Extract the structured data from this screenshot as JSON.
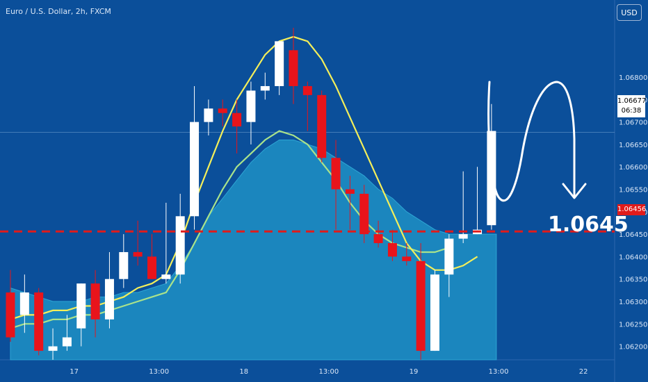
{
  "header": {
    "title": "Euro / U.S. Dollar, 2h, FXCM"
  },
  "toolbar": {
    "currency_label": "USD"
  },
  "price_tags": {
    "current_price": "1.06677",
    "countdown": "06:38",
    "line_price": "1.06456"
  },
  "annotation": {
    "target_label": "1.0645"
  },
  "colors": {
    "background": "#0b4f9a",
    "bull": "#ffffff",
    "bear": "#e8141b",
    "ma_fast": "#f4ef5a",
    "ma_slow": "#a9e38b",
    "area_fill": "#1f8fc4",
    "level_line": "#e01b1b"
  },
  "chart_data": {
    "type": "candlestick",
    "ylim": [
      1.0617,
      1.0691
    ],
    "y_ticks": [
      1.062,
      1.0625,
      1.063,
      1.0635,
      1.064,
      1.0645,
      1.065,
      1.0655,
      1.066,
      1.0665,
      1.067,
      1.0675,
      1.068
    ],
    "y_tick_labels": [
      "1.06200",
      "1.06250",
      "1.06300",
      "1.06350",
      "1.06400",
      "1.06450",
      "1.06500",
      "1.06550",
      "1.06600",
      "1.06650",
      "1.06700",
      "1.06750",
      "1.06800"
    ],
    "x_tick_labels": [
      {
        "label": "17",
        "bar": 4.5
      },
      {
        "label": "13:00",
        "bar": 10.5
      },
      {
        "label": "18",
        "bar": 16.5
      },
      {
        "label": "13:00",
        "bar": 22.5
      },
      {
        "label": "19",
        "bar": 28.5
      },
      {
        "label": "13:00",
        "bar": 34.5
      },
      {
        "label": "22",
        "bar": 40.5
      }
    ],
    "candles": [
      {
        "o": 1.0632,
        "h": 1.0637,
        "l": 1.0621,
        "c": 1.0622
      },
      {
        "o": 1.0627,
        "h": 1.0636,
        "l": 1.0623,
        "c": 1.0632
      },
      {
        "o": 1.0632,
        "h": 1.0633,
        "l": 1.0618,
        "c": 1.0619
      },
      {
        "o": 1.0619,
        "h": 1.0624,
        "l": 1.0617,
        "c": 1.062
      },
      {
        "o": 1.062,
        "h": 1.0627,
        "l": 1.0619,
        "c": 1.0622
      },
      {
        "o": 1.0624,
        "h": 1.0634,
        "l": 1.062,
        "c": 1.0634
      },
      {
        "o": 1.0634,
        "h": 1.0637,
        "l": 1.0622,
        "c": 1.0626
      },
      {
        "o": 1.0626,
        "h": 1.0641,
        "l": 1.0624,
        "c": 1.0635
      },
      {
        "o": 1.0635,
        "h": 1.0645,
        "l": 1.0633,
        "c": 1.0641
      },
      {
        "o": 1.0641,
        "h": 1.0648,
        "l": 1.0638,
        "c": 1.064
      },
      {
        "o": 1.064,
        "h": 1.0645,
        "l": 1.0635,
        "c": 1.0635
      },
      {
        "o": 1.0635,
        "h": 1.0652,
        "l": 1.0634,
        "c": 1.0636
      },
      {
        "o": 1.0636,
        "h": 1.0654,
        "l": 1.0634,
        "c": 1.0649
      },
      {
        "o": 1.0649,
        "h": 1.0678,
        "l": 1.0646,
        "c": 1.067
      },
      {
        "o": 1.067,
        "h": 1.0675,
        "l": 1.0667,
        "c": 1.0673
      },
      {
        "o": 1.0673,
        "h": 1.0675,
        "l": 1.0669,
        "c": 1.0672
      },
      {
        "o": 1.0672,
        "h": 1.0675,
        "l": 1.0663,
        "c": 1.0669
      },
      {
        "o": 1.067,
        "h": 1.0679,
        "l": 1.0665,
        "c": 1.0677
      },
      {
        "o": 1.0677,
        "h": 1.0681,
        "l": 1.0675,
        "c": 1.0678
      },
      {
        "o": 1.0678,
        "h": 1.0688,
        "l": 1.0676,
        "c": 1.0688
      },
      {
        "o": 1.0686,
        "h": 1.0691,
        "l": 1.0674,
        "c": 1.0678
      },
      {
        "o": 1.0678,
        "h": 1.0679,
        "l": 1.0668,
        "c": 1.0676
      },
      {
        "o": 1.0676,
        "h": 1.0677,
        "l": 1.0661,
        "c": 1.0662
      },
      {
        "o": 1.0662,
        "h": 1.0666,
        "l": 1.0646,
        "c": 1.0655
      },
      {
        "o": 1.0655,
        "h": 1.0658,
        "l": 1.0646,
        "c": 1.0654
      },
      {
        "o": 1.0654,
        "h": 1.0656,
        "l": 1.0643,
        "c": 1.0645
      },
      {
        "o": 1.0645,
        "h": 1.0648,
        "l": 1.0642,
        "c": 1.0643
      },
      {
        "o": 1.0643,
        "h": 1.0646,
        "l": 1.0639,
        "c": 1.064
      },
      {
        "o": 1.064,
        "h": 1.0643,
        "l": 1.0638,
        "c": 1.0639
      },
      {
        "o": 1.0639,
        "h": 1.0643,
        "l": 1.0617,
        "c": 1.0619
      },
      {
        "o": 1.0619,
        "h": 1.0637,
        "l": 1.0619,
        "c": 1.0636
      },
      {
        "o": 1.0636,
        "h": 1.0645,
        "l": 1.0631,
        "c": 1.0644
      },
      {
        "o": 1.0644,
        "h": 1.0659,
        "l": 1.0643,
        "c": 1.0645
      },
      {
        "o": 1.0645,
        "h": 1.066,
        "l": 1.0645,
        "c": 1.0646
      },
      {
        "o": 1.0647,
        "h": 1.0674,
        "l": 1.0646,
        "c": 1.0668
      }
    ],
    "ma_fast": [
      1.0626,
      1.0627,
      1.0627,
      1.0628,
      1.0628,
      1.0629,
      1.0629,
      1.063,
      1.0631,
      1.0633,
      1.0634,
      1.0636,
      1.0643,
      1.0652,
      1.066,
      1.0668,
      1.0675,
      1.068,
      1.0685,
      1.0688,
      1.0689,
      1.0688,
      1.0684,
      1.0678,
      1.0671,
      1.0664,
      1.0657,
      1.065,
      1.0643,
      1.0639,
      1.0637,
      1.0637,
      1.0638,
      1.064
    ],
    "ma_slow": [
      1.0624,
      1.0625,
      1.0625,
      1.0626,
      1.0626,
      1.0627,
      1.0627,
      1.0628,
      1.0629,
      1.063,
      1.0631,
      1.0632,
      1.0637,
      1.0643,
      1.0649,
      1.0655,
      1.066,
      1.0663,
      1.0666,
      1.0668,
      1.0667,
      1.0665,
      1.0661,
      1.0657,
      1.0652,
      1.0648,
      1.0645,
      1.0643,
      1.0642,
      1.0641,
      1.0641,
      1.0642
    ],
    "area_top": [
      1.0633,
      1.0632,
      1.0631,
      1.063,
      1.063,
      1.063,
      1.0631,
      1.0631,
      1.0632,
      1.0632,
      1.0633,
      1.0634,
      1.0638,
      1.0643,
      1.0649,
      1.0653,
      1.0657,
      1.0661,
      1.0664,
      1.0666,
      1.0666,
      1.0665,
      1.0664,
      1.0662,
      1.066,
      1.0658,
      1.0655,
      1.0653,
      1.065,
      1.0648,
      1.0646,
      1.0645,
      1.0645,
      1.0645,
      1.0645
    ],
    "level_line": 1.06456,
    "current_price": 1.06677
  }
}
